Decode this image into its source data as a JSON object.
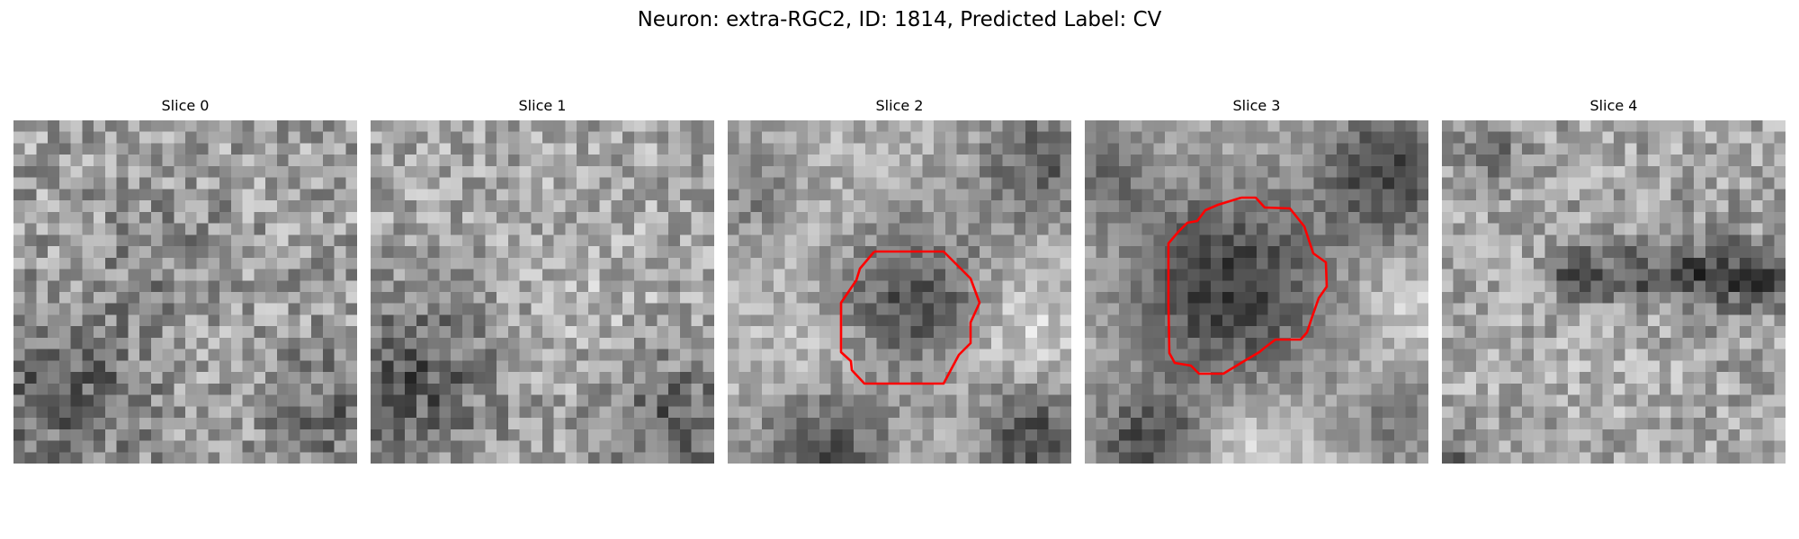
{
  "figure": {
    "title": "Neuron: extra-RGC2, ID: 1814, Predicted Label: CV",
    "colormap": "grayscale",
    "contour_color": "#ff0000"
  },
  "panels": [
    {
      "title": "Slice 0",
      "has_contour": false
    },
    {
      "title": "Slice 1",
      "has_contour": false
    },
    {
      "title": "Slice 2",
      "has_contour": true
    },
    {
      "title": "Slice 3",
      "has_contour": true
    },
    {
      "title": "Slice 4",
      "has_contour": false
    }
  ]
}
